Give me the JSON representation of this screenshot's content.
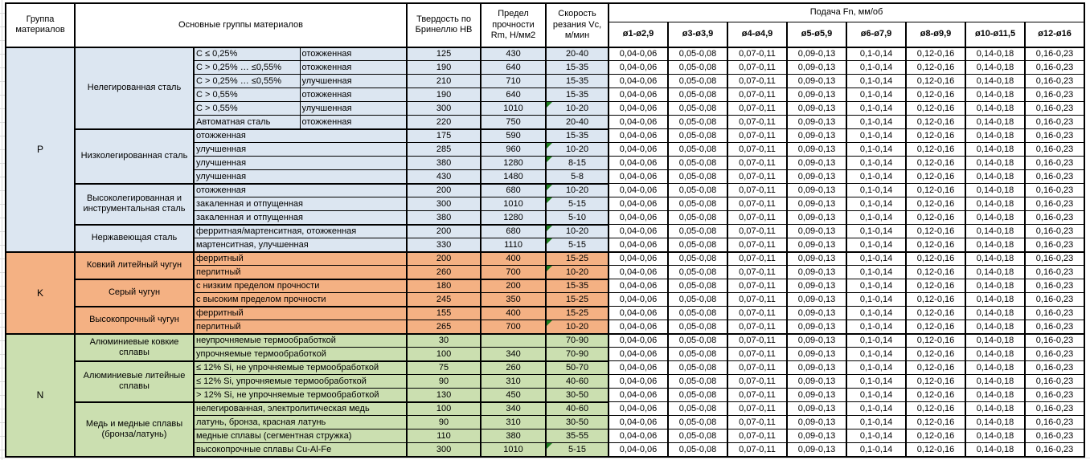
{
  "header": {
    "col_group": "Группа материалов",
    "col_main": "Основные группы материалов",
    "col_hb": "Твердость по Бринеллю HB",
    "col_rm": "Предел прочности Rm, Н/мм2",
    "col_vc": "Скорость резания Vc, м/мин",
    "feed_title": "Подача Fn, мм/об",
    "feed_cols": [
      "ø1-ø2,9",
      "ø3-ø3,9",
      "ø4-ø4,9",
      "ø5-ø5,9",
      "ø6-ø7,9",
      "ø8-ø9,9",
      "ø10-ø11,5",
      "ø12-ø16"
    ]
  },
  "feed_values": [
    "0,04-0,06",
    "0,05-0,08",
    "0,07-0,11",
    "0,09-0,13",
    "0,1-0,14",
    "0,12-0,16",
    "0,14-0,18",
    "0,16-0,23"
  ],
  "colors": {
    "group_p": "#DCE6F1",
    "group_k": "#F4B183",
    "group_n": "#CBDFB0",
    "flag_triangle": "#208020",
    "border": "#000000"
  },
  "groups": [
    {
      "code": "P",
      "color": "#DCE6F1",
      "subgroups": [
        {
          "name": "Нелегированная сталь",
          "rows": [
            {
              "c1": "C ≤ 0,25%",
              "c2": "отожженная",
              "hb": "125",
              "rm": "430",
              "vc": "20-40"
            },
            {
              "c1": "C > 0,25% … ≤0,55%",
              "c2": "отожженная",
              "hb": "190",
              "rm": "640",
              "vc": "15-35"
            },
            {
              "c1": "C > 0,25% … ≤0,55%",
              "c2": "улучшенная",
              "hb": "210",
              "rm": "710",
              "vc": "15-35"
            },
            {
              "c1": "C > 0,55%",
              "c2": "отожженная",
              "hb": "190",
              "rm": "640",
              "vc": "15-35"
            },
            {
              "c1": "C > 0,55%",
              "c2": "улучшенная",
              "hb": "300",
              "rm": "1010",
              "vc": "10-20",
              "flag": true
            },
            {
              "c1": "Автоматная сталь",
              "c2": "отожженная",
              "hb": "220",
              "rm": "750",
              "vc": "20-40"
            }
          ]
        },
        {
          "name": "Низколегированная сталь",
          "rows": [
            {
              "c1": "отожженная",
              "hb": "175",
              "rm": "590",
              "vc": "15-35"
            },
            {
              "c1": "улучшенная",
              "hb": "285",
              "rm": "960",
              "vc": "10-20",
              "flag": true
            },
            {
              "c1": "улучшенная",
              "hb": "380",
              "rm": "1280",
              "vc": "8-15",
              "flag": true
            },
            {
              "c1": "улучшенная",
              "hb": "430",
              "rm": "1480",
              "vc": "5-8"
            }
          ]
        },
        {
          "name": "Высоколегированная и инструментальная сталь",
          "rows": [
            {
              "c1": "отожженная",
              "hb": "200",
              "rm": "680",
              "vc": "10-20",
              "flag": true
            },
            {
              "c1": "закаленная и отпущенная",
              "hb": "300",
              "rm": "1010",
              "vc": "5-15",
              "flag": true
            },
            {
              "c1": "закаленная и отпущенная",
              "hb": "380",
              "rm": "1280",
              "vc": "5-10"
            }
          ]
        },
        {
          "name": "Нержавеющая сталь",
          "rows": [
            {
              "c1": "ферритная/мартенситная, отожженная",
              "hb": "200",
              "rm": "680",
              "vc": "10-20",
              "flag": true
            },
            {
              "c1": "мартенситная, улучшенная",
              "hb": "330",
              "rm": "1110",
              "vc": "5-15",
              "flag": true
            }
          ]
        }
      ]
    },
    {
      "code": "K",
      "color": "#F4B183",
      "subgroups": [
        {
          "name": "Ковкий литейный чугун",
          "rows": [
            {
              "c1": "ферритный",
              "hb": "200",
              "rm": "400",
              "vc": "15-25"
            },
            {
              "c1": "перлитный",
              "hb": "260",
              "rm": "700",
              "vc": "10-20",
              "flag": true
            }
          ]
        },
        {
          "name": "Серый чугун",
          "rows": [
            {
              "c1": "с низким пределом прочности",
              "hb": "180",
              "rm": "200",
              "vc": "15-35"
            },
            {
              "c1": "с высоким пределом прочности",
              "hb": "245",
              "rm": "350",
              "vc": "15-25"
            }
          ]
        },
        {
          "name": "Высокопрочный чугун",
          "rows": [
            {
              "c1": "ферритный",
              "hb": "155",
              "rm": "400",
              "vc": "15-25"
            },
            {
              "c1": "перлитный",
              "hb": "265",
              "rm": "700",
              "vc": "10-20",
              "flag": true
            }
          ]
        }
      ]
    },
    {
      "code": "N",
      "color": "#CBDFB0",
      "subgroups": [
        {
          "name": "Алюминиевые ковкие сплавы",
          "rows": [
            {
              "c1": "неупрочняемые термообработкой",
              "hb": "30",
              "rm": "",
              "vc": "70-90"
            },
            {
              "c1": "упрочняемые термообработкой",
              "hb": "100",
              "rm": "340",
              "vc": "70-90"
            }
          ]
        },
        {
          "name": "Алюминиевые литейные сплавы",
          "rows": [
            {
              "c1": "≤ 12% Si, не упрочняемые термообработкой",
              "hb": "75",
              "rm": "260",
              "vc": "50-70"
            },
            {
              "c1": "≤ 12% Si, упрочняемые термообработкой",
              "hb": "90",
              "rm": "310",
              "vc": "40-60"
            },
            {
              "c1": "> 12% Si, не упрочняемые термообработкой",
              "hb": "130",
              "rm": "450",
              "vc": "30-50"
            }
          ]
        },
        {
          "name": "Медь и медные сплавы (бронза/латунь)",
          "rows": [
            {
              "c1": "нелегированная, электролитическая медь",
              "hb": "100",
              "rm": "340",
              "vc": "40-60"
            },
            {
              "c1": "латунь, бронза, красная латунь",
              "hb": "90",
              "rm": "310",
              "vc": "30-50"
            },
            {
              "c1": "медные сплавы (сегментная стружка)",
              "hb": "110",
              "rm": "380",
              "vc": "35-55"
            },
            {
              "c1": "высокопрочные сплавы Cu-Al-Fe",
              "hb": "300",
              "rm": "1010",
              "vc": "5-15",
              "flag": true
            }
          ]
        }
      ]
    }
  ]
}
